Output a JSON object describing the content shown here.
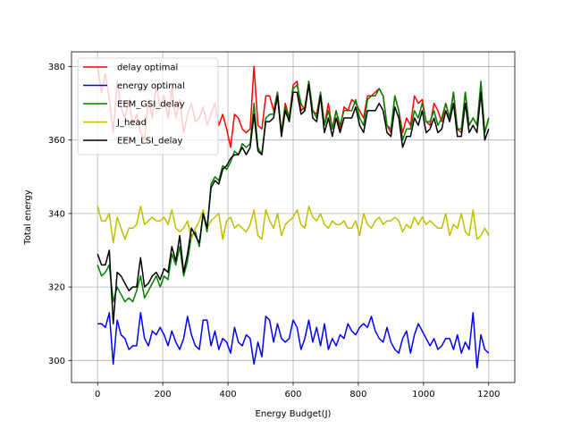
{
  "chart_data": {
    "type": "line",
    "title": "",
    "xlabel": "Energy Budget(J)",
    "ylabel": "Total energy",
    "xlim": [
      -80,
      1280
    ],
    "ylim": [
      294,
      384
    ],
    "xticks": [
      0,
      200,
      400,
      600,
      800,
      1000,
      1200
    ],
    "yticks": [
      300,
      320,
      340,
      360,
      380
    ],
    "grid": true,
    "legend_position": "upper-left",
    "x": [
      0,
      12,
      24,
      36,
      48,
      60,
      72,
      84,
      96,
      108,
      120,
      132,
      144,
      156,
      168,
      180,
      192,
      204,
      216,
      228,
      240,
      252,
      264,
      276,
      288,
      300,
      312,
      324,
      336,
      348,
      360,
      372,
      384,
      396,
      408,
      420,
      432,
      444,
      456,
      468,
      480,
      492,
      504,
      516,
      528,
      540,
      552,
      564,
      576,
      588,
      600,
      612,
      624,
      636,
      648,
      660,
      672,
      684,
      696,
      708,
      720,
      732,
      744,
      756,
      768,
      780,
      792,
      804,
      816,
      828,
      840,
      852,
      864,
      876,
      888,
      900,
      912,
      924,
      936,
      948,
      960,
      972,
      984,
      996,
      1008,
      1020,
      1032,
      1044,
      1056,
      1068,
      1080,
      1092,
      1104,
      1116,
      1128,
      1140,
      1152,
      1164,
      1176,
      1188,
      1200
    ],
    "series": [
      {
        "name": "delay optimal",
        "color": "#ff0000",
        "values": [
          380,
          373,
          378,
          371,
          362,
          376,
          369,
          366,
          371,
          364,
          367,
          362,
          360,
          371,
          366,
          375,
          369,
          372,
          366,
          374,
          366,
          371,
          362,
          367,
          370,
          365,
          366,
          369,
          364,
          367,
          370,
          364,
          367,
          363,
          358,
          367,
          366,
          363,
          362,
          363,
          380,
          364,
          363,
          372,
          372,
          368,
          373,
          362,
          370,
          366,
          375,
          376,
          368,
          369,
          376,
          368,
          367,
          373,
          364,
          370,
          363,
          368,
          363,
          369,
          368,
          371,
          370,
          368,
          366,
          372,
          372,
          373,
          374,
          372,
          364,
          362,
          372,
          368,
          362,
          366,
          364,
          372,
          370,
          371,
          365,
          364,
          370,
          368,
          365,
          370,
          366,
          373,
          363,
          362,
          373,
          364,
          366,
          364,
          375,
          362,
          366
        ]
      },
      {
        "name": "energy optimal",
        "color": "#0000ff",
        "values": [
          310,
          310,
          309,
          313,
          299,
          311,
          307,
          306,
          303,
          304,
          304,
          313,
          306,
          304,
          308,
          307,
          309,
          307,
          304,
          308,
          305,
          303,
          306,
          312,
          307,
          304,
          303,
          311,
          311,
          304,
          308,
          303,
          306,
          305,
          302,
          309,
          305,
          304,
          307,
          306,
          299,
          305,
          301,
          312,
          311,
          305,
          310,
          306,
          305,
          306,
          311,
          309,
          303,
          306,
          311,
          305,
          309,
          304,
          310,
          303,
          306,
          304,
          307,
          306,
          310,
          308,
          307,
          309,
          310,
          309,
          312,
          308,
          306,
          305,
          309,
          305,
          303,
          302,
          306,
          308,
          302,
          307,
          310,
          308,
          306,
          304,
          306,
          303,
          304,
          306,
          306,
          303,
          307,
          302,
          305,
          303,
          313,
          298,
          307,
          303,
          302
        ]
      },
      {
        "name": "EEM_GSI_delay",
        "color": "#008000",
        "values": [
          326,
          323,
          324,
          326,
          316,
          320,
          318,
          316,
          317,
          316,
          319,
          323,
          317,
          319,
          321,
          323,
          320,
          323,
          322,
          329,
          326,
          331,
          323,
          327,
          334,
          335,
          331,
          340,
          335,
          348,
          350,
          349,
          353,
          352,
          354,
          357,
          356,
          359,
          358,
          359,
          370,
          358,
          356,
          366,
          367,
          367,
          373,
          362,
          369,
          366,
          374,
          375,
          370,
          368,
          376,
          368,
          366,
          373,
          364,
          368,
          363,
          368,
          364,
          368,
          368,
          368,
          371,
          366,
          364,
          371,
          372,
          372,
          374,
          372,
          364,
          363,
          372,
          368,
          360,
          363,
          363,
          368,
          366,
          370,
          365,
          365,
          368,
          364,
          366,
          370,
          366,
          373,
          363,
          363,
          373,
          364,
          366,
          364,
          376,
          362,
          366
        ]
      },
      {
        "name": "J_head",
        "color": "#bfbf00",
        "values": [
          342,
          338,
          338,
          340,
          332,
          339,
          336,
          333,
          336,
          336,
          337,
          342,
          337,
          338,
          339,
          338,
          338,
          339,
          337,
          341,
          336,
          335,
          336,
          338,
          333,
          336,
          338,
          341,
          336,
          338,
          339,
          340,
          333,
          338,
          339,
          336,
          337,
          336,
          335,
          337,
          341,
          334,
          333,
          341,
          338,
          336,
          340,
          334,
          337,
          338,
          339,
          341,
          337,
          336,
          342,
          339,
          338,
          340,
          337,
          336,
          338,
          337,
          337,
          338,
          336,
          336,
          338,
          334,
          340,
          337,
          336,
          338,
          339,
          337,
          338,
          338,
          339,
          338,
          335,
          337,
          336,
          339,
          337,
          339,
          337,
          338,
          337,
          336,
          336,
          340,
          334,
          337,
          336,
          340,
          335,
          334,
          341,
          333,
          334,
          336,
          334
        ]
      },
      {
        "name": "EEM_LSI_delay",
        "color": "#000000",
        "values": [
          329,
          326,
          326,
          330,
          310,
          324,
          323,
          321,
          319,
          320,
          320,
          328,
          320,
          321,
          323,
          324,
          322,
          325,
          324,
          331,
          327,
          334,
          324,
          329,
          336,
          334,
          332,
          340,
          336,
          347,
          349,
          348,
          352,
          353,
          355,
          356,
          356,
          358,
          356,
          358,
          367,
          357,
          356,
          365,
          365,
          366,
          372,
          361,
          368,
          365,
          373,
          373,
          367,
          368,
          375,
          366,
          365,
          372,
          362,
          366,
          361,
          366,
          362,
          366,
          366,
          366,
          369,
          364,
          362,
          368,
          368,
          368,
          370,
          368,
          362,
          361,
          369,
          366,
          358,
          361,
          361,
          366,
          364,
          368,
          362,
          363,
          366,
          362,
          363,
          368,
          365,
          370,
          361,
          361,
          370,
          362,
          364,
          362,
          373,
          360,
          363
        ]
      }
    ]
  }
}
